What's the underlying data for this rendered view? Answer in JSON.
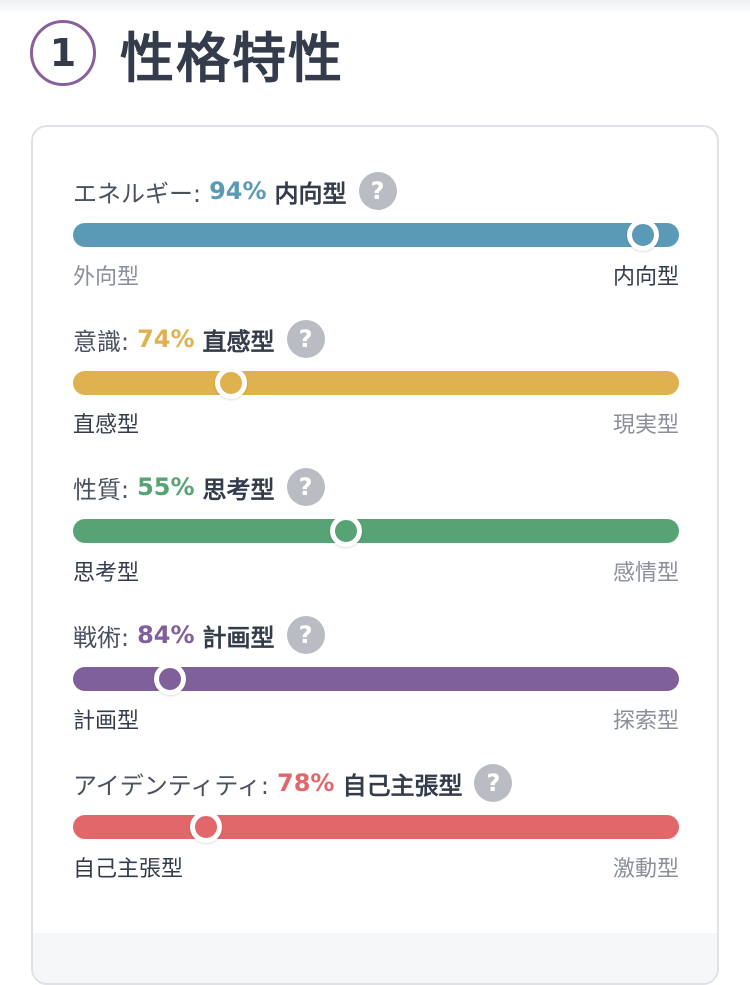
{
  "header": {
    "number": "1",
    "title": "性格特性"
  },
  "traits": [
    {
      "label": "エネルギー:",
      "percent": "94%",
      "type": "内向型",
      "color": "#5b9ab6",
      "level": 0.94,
      "side": "right",
      "left": "外向型",
      "right": "内向型",
      "active": "right",
      "help_icon": "question-icon"
    },
    {
      "label": "意識:",
      "percent": "74%",
      "type": "直感型",
      "color": "#e0b24f",
      "level": 0.74,
      "side": "left",
      "left": "直感型",
      "right": "現実型",
      "active": "left",
      "help_icon": "question-icon"
    },
    {
      "label": "性質:",
      "percent": "55%",
      "type": "思考型",
      "color": "#57a375",
      "level": 0.55,
      "side": "left",
      "left": "思考型",
      "right": "感情型",
      "active": "left",
      "help_icon": "question-icon"
    },
    {
      "label": "戦術:",
      "percent": "84%",
      "type": "計画型",
      "color": "#80609a",
      "level": 0.84,
      "side": "left",
      "left": "計画型",
      "right": "探索型",
      "active": "left",
      "help_icon": "question-icon"
    },
    {
      "label": "アイデンティティ:",
      "percent": "78%",
      "type": "自己主張型",
      "color": "#e2676a",
      "level": 0.78,
      "side": "left",
      "left": "自己主張型",
      "right": "激動型",
      "active": "left",
      "help_icon": "question-icon"
    }
  ]
}
